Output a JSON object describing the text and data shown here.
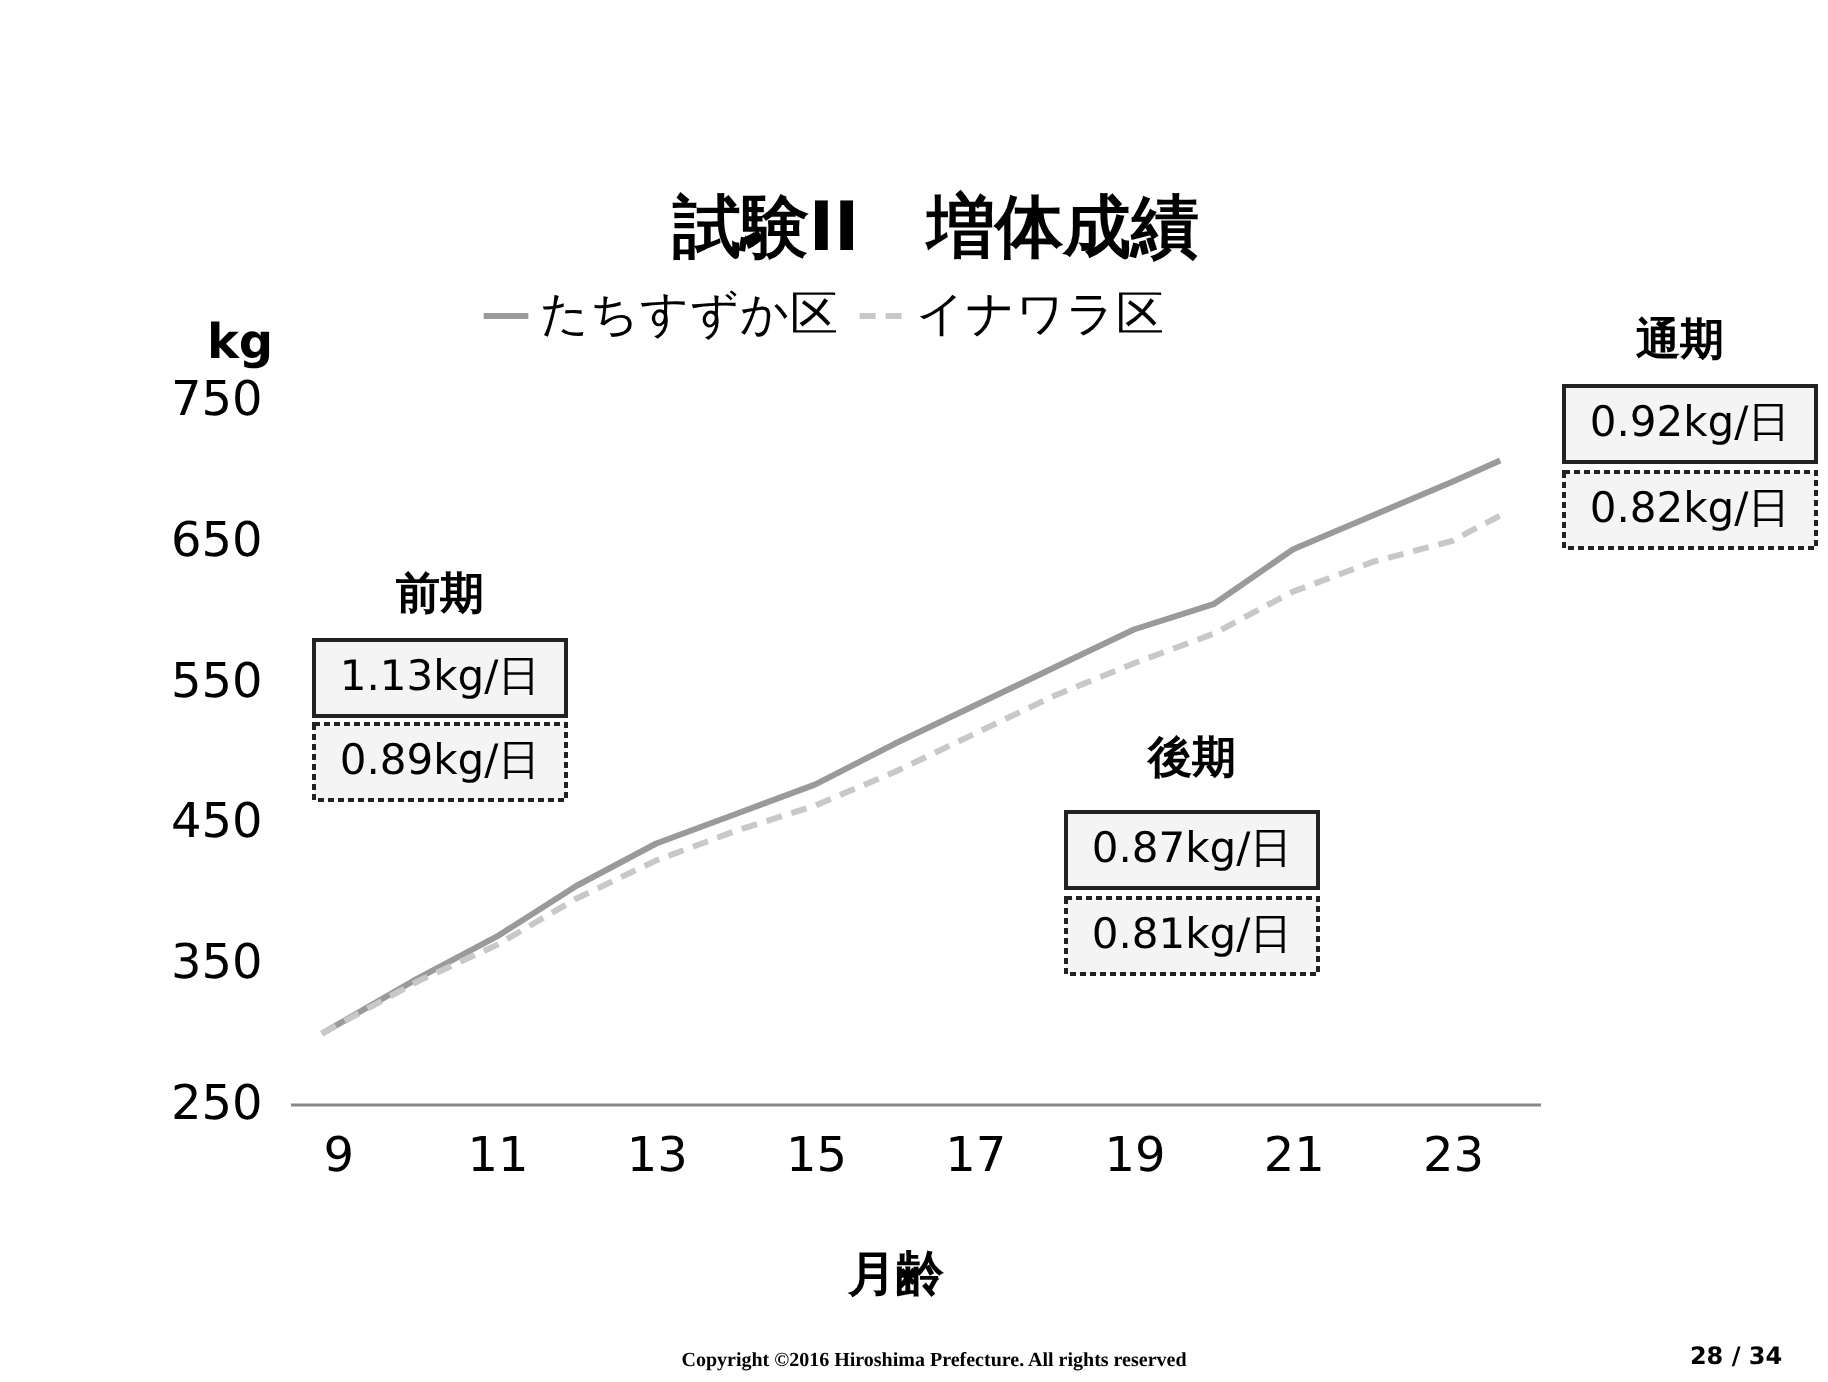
{
  "chart_data": {
    "type": "line",
    "title": "試験II　増体成績",
    "xlabel": "月齢",
    "ylabel": "kg",
    "xlim": [
      8.4,
      24.1
    ],
    "ylim": [
      250,
      750
    ],
    "xticks": [
      9,
      11,
      13,
      15,
      17,
      19,
      21,
      23
    ],
    "yticks": [
      250,
      350,
      450,
      550,
      650,
      750
    ],
    "grid": false,
    "legend": "top",
    "marker": "none",
    "series": [
      {
        "name": "たちすずか区",
        "color": "#9a9a9a",
        "line_style": "solid",
        "x": [
          8.8,
          10,
          11,
          12,
          13,
          14,
          15,
          16,
          17,
          18,
          19,
          20,
          21,
          22,
          23,
          23.6
        ],
        "values": [
          300,
          339,
          369,
          405,
          435,
          456,
          477,
          506,
          533,
          560,
          587,
          605,
          644,
          668,
          692,
          707
        ]
      },
      {
        "name": "イナワラ区",
        "color": "#c8c8c8",
        "line_style": "dashed",
        "x": [
          8.8,
          10,
          11,
          12,
          13,
          14,
          15,
          16,
          17,
          18,
          19,
          20,
          21,
          22,
          23,
          23.6
        ],
        "values": [
          300,
          337,
          363,
          396,
          423,
          444,
          462,
          486,
          513,
          540,
          563,
          584,
          614,
          635,
          650,
          668
        ]
      }
    ],
    "annotations": [
      "前期",
      "1.13kg/日",
      "0.89kg/日",
      "後期",
      "0.87kg/日",
      "0.81kg/日",
      "通期",
      "0.92kg/日",
      "0.82kg/日",
      "Copyright ©2016 Hiroshima Prefecture. All rights reserved",
      "28 / 34"
    ]
  }
}
